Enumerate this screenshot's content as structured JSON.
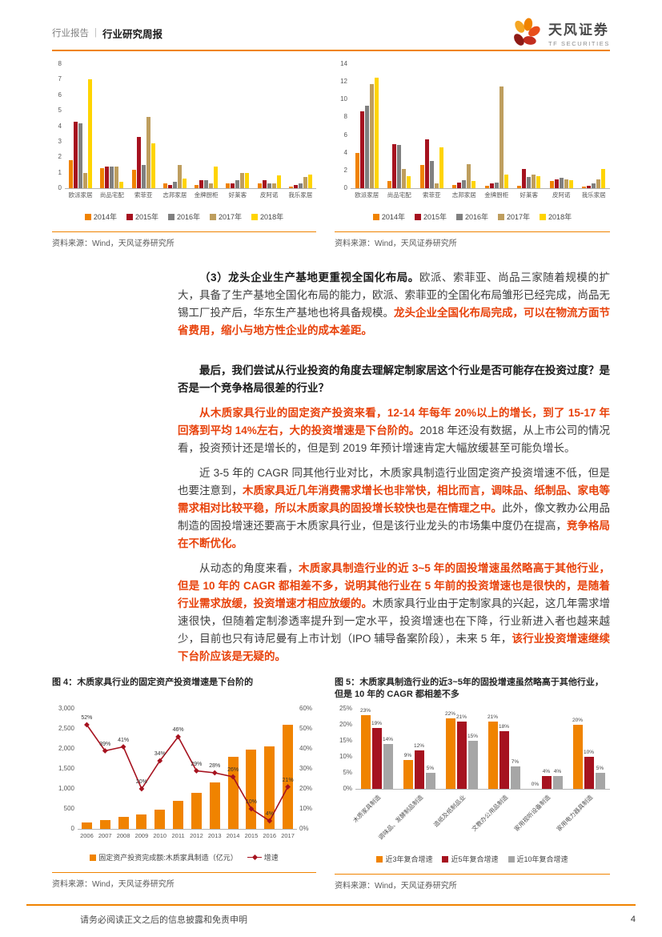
{
  "meta": {
    "accent_line_color": "#F08300",
    "highlight_text_color": "#E8420B"
  },
  "header": {
    "doc_type": "行业报告",
    "divider": "|",
    "report_type": "行业研究周报",
    "brand_cn": "天风证券",
    "brand_en": "TF SECURITIES"
  },
  "top_charts": {
    "left": {
      "chart_data": {
        "type": "bar",
        "categories": [
          "欧派家居",
          "尚品宅配",
          "索菲亚",
          "志邦家居",
          "金牌厨柜",
          "好莱客",
          "皮阿诺",
          "我乐家居"
        ],
        "series": [
          {
            "name": "2014年",
            "color": "#F08300",
            "values": [
              1.8,
              1.3,
              1.2,
              0.3,
              0.2,
              0.3,
              0.3,
              0.1
            ]
          },
          {
            "name": "2015年",
            "color": "#A6121F",
            "values": [
              4.3,
              1.4,
              3.3,
              0.2,
              0.5,
              0.3,
              0.5,
              0.2
            ]
          },
          {
            "name": "2016年",
            "color": "#808080",
            "values": [
              4.2,
              1.4,
              1.5,
              0.4,
              0.5,
              0.5,
              0.3,
              0.3
            ]
          },
          {
            "name": "2017年",
            "color": "#BE9E5E",
            "values": [
              1.0,
              1.4,
              4.6,
              1.5,
              0.3,
              1.0,
              0.3,
              0.7
            ]
          },
          {
            "name": "2018年",
            "color": "#FFD400",
            "values": [
              7.0,
              0.4,
              2.9,
              0.6,
              1.4,
              1.0,
              0.8,
              0.9
            ]
          }
        ],
        "ylim": [
          0,
          8
        ],
        "yticks": [
          "0",
          "1",
          "2",
          "3",
          "4",
          "5",
          "6",
          "7",
          "8"
        ]
      },
      "source": "资料来源：Wind，天风证券研究所"
    },
    "right": {
      "chart_data": {
        "type": "bar",
        "categories": [
          "欧派家居",
          "尚品宅配",
          "索菲亚",
          "志邦家居",
          "金牌厨柜",
          "好莱客",
          "皮阿诺",
          "我乐家居"
        ],
        "series": [
          {
            "name": "2014年",
            "color": "#F08300",
            "values": [
              4.0,
              0.8,
              2.6,
              0.4,
              0.3,
              0.3,
              0.8,
              0.2
            ]
          },
          {
            "name": "2015年",
            "color": "#A6121F",
            "values": [
              8.7,
              5.0,
              5.5,
              0.6,
              0.5,
              2.2,
              1.0,
              0.3
            ]
          },
          {
            "name": "2016年",
            "color": "#808080",
            "values": [
              9.3,
              4.9,
              3.1,
              0.9,
              0.6,
              1.3,
              1.2,
              0.5
            ]
          },
          {
            "name": "2017年",
            "color": "#BE9E5E",
            "values": [
              11.7,
              2.2,
              0.5,
              2.7,
              11.5,
              1.5,
              1.0,
              1.0
            ]
          },
          {
            "name": "2018年",
            "color": "#FFD400",
            "values": [
              12.5,
              1.4,
              4.6,
              0.8,
              1.5,
              1.4,
              0.9,
              2.2
            ]
          }
        ],
        "ylim": [
          0,
          14
        ],
        "yticks": [
          "0",
          "2",
          "4",
          "6",
          "8",
          "10",
          "12",
          "14"
        ]
      },
      "source": "资料来源：Wind，天风证券研究所"
    }
  },
  "body": {
    "paragraphs": [
      {
        "spacing": "normal",
        "segments": [
          {
            "style": "bold",
            "text": "（3）龙头企业生产基地更重视全国化布局。"
          },
          {
            "style": "normal",
            "text": "欧派、索菲亚、尚品三家随着规模的扩大，具备了生产基地全国化布局的能力，欧派、索菲亚的全国化布局雏形已经完成，尚品无锡工厂投产后，华东生产基地也将具备规模。"
          },
          {
            "style": "accent",
            "text": "龙头企业全国化布局完成，可以在物流方面节省费用，缩小与地方性企业的成本差距。"
          }
        ]
      },
      {
        "spacing": "large",
        "segments": [
          {
            "style": "bold",
            "text": "最后，我们尝试从行业投资的角度去理解定制家居这个行业是否可能存在投资过度？是否是一个竞争格局很差的行业？"
          }
        ]
      },
      {
        "spacing": "normal",
        "segments": [
          {
            "style": "accent",
            "text": "从木质家具行业的固定资产投资来看，12-14 年每年 20%以上的增长，到了 15-17 年回落到平均 14%左右，大的投资增速是下台阶的。"
          },
          {
            "style": "normal",
            "text": "2018 年还没有数据，从上市公司的情况看，投资预计还是增长的，但是到 2019 年预计增速肯定大幅放缓甚至可能负增长。"
          }
        ]
      },
      {
        "spacing": "normal",
        "segments": [
          {
            "style": "normal",
            "text": "近 3-5 年的 CAGR 同其他行业对比，木质家具制造行业固定资产投资增速不低，但是也要注意到，"
          },
          {
            "style": "accent",
            "text": "木质家具近几年消费需求增长也非常快，相比而言，调味品、纸制品、家电等需求相对比较平稳，所以木质家具的固投增长较快也是在情理之中。"
          },
          {
            "style": "normal",
            "text": "此外，像文教办公用品制造的固投增速还要高于木质家具行业，但是该行业龙头的市场集中度仍在提高，"
          },
          {
            "style": "accent",
            "text": "竞争格局在不断优化。"
          }
        ]
      },
      {
        "spacing": "normal",
        "segments": [
          {
            "style": "normal",
            "text": "从动态的角度来看，"
          },
          {
            "style": "accent",
            "text": "木质家具制造行业的近 3~5 年的固投增速虽然略高于其他行业，但是 10 年的 CAGR 都相差不多，说明其他行业在 5 年前的投资增速也是很快的，是随着行业需求放缓，投资增速才相应放缓的。"
          },
          {
            "style": "normal",
            "text": "木质家具行业由于定制家具的兴起，这几年需求增速很快，但随着定制渗透率提升到一定水平，投资增速也在下降，行业新进入者也越来越少，目前也只有诗尼曼有上市计划（IPO 辅导备案阶段），未来 5 年，"
          },
          {
            "style": "accent",
            "text": "该行业投资增速继续下台阶应该是无疑的。"
          }
        ]
      }
    ]
  },
  "figure4": {
    "caption_label": "图 4：",
    "caption": "木质家具行业的固定资产投资增速是下台阶的",
    "chart_data": {
      "type": "combo-bar-line",
      "x": [
        "2006",
        "2007",
        "2008",
        "2009",
        "2010",
        "2011",
        "2012",
        "2013",
        "2014",
        "2015",
        "2016",
        "2017"
      ],
      "bar_series": {
        "name": "固定资产投资完成额:木质家具制造（亿元）",
        "color": "#F08300",
        "values": [
          155,
          215,
          300,
          360,
          480,
          700,
          905,
          1160,
          1800,
          1980,
          2060,
          2600
        ]
      },
      "line_series": {
        "name": "增速",
        "color": "#A6121F",
        "values": [
          52,
          39,
          41,
          20,
          34,
          46,
          29,
          28,
          26,
          10,
          4,
          21
        ]
      },
      "ylim_left": [
        0,
        3000
      ],
      "yticks_left": [
        "0",
        "500",
        "1,000",
        "1,500",
        "2,000",
        "2,500",
        "3,000"
      ],
      "ylim_right": [
        0,
        60
      ],
      "yticks_right": [
        "0%",
        "10%",
        "20%",
        "30%",
        "40%",
        "50%",
        "60%"
      ]
    },
    "source": "资料来源：Wind，天风证券研究所"
  },
  "figure5": {
    "caption_label": "图 5：",
    "caption": "木质家具制造行业的近3~5年的固投增速虽然略高于其他行业，但是 10 年的 CAGR 都相差不多",
    "chart_data": {
      "type": "bar",
      "categories": [
        "木质家具制造",
        "调味品、发酵制品制造",
        "造纸及纸制品业",
        "文教办公用品制造",
        "家用视听设备制造",
        "家用电力器具制造"
      ],
      "series": [
        {
          "name": "近3年复合增速",
          "color": "#F08300",
          "values": [
            23,
            9,
            22,
            21,
            0,
            20
          ]
        },
        {
          "name": "近5年复合增速",
          "color": "#A6121F",
          "values": [
            19,
            12,
            21,
            18,
            4,
            10
          ]
        },
        {
          "name": "近10年复合增速",
          "color": "#A6A6A6",
          "values": [
            14,
            5,
            15,
            7,
            4,
            5
          ]
        }
      ],
      "ylim": [
        0,
        25
      ],
      "yticks": [
        "0%",
        "5%",
        "10%",
        "15%",
        "20%",
        "25%"
      ],
      "value_label_suffix": "%"
    },
    "source": "资料来源：Wind，天风证券研究所"
  },
  "footer": {
    "disclaimer": "请务必阅读正文之后的信息披露和免责申明",
    "page_number": "4"
  }
}
